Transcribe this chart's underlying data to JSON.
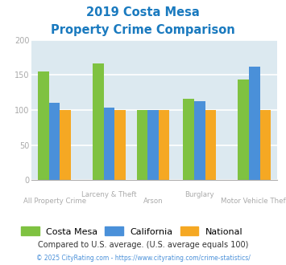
{
  "title_line1": "2019 Costa Mesa",
  "title_line2": "Property Crime Comparison",
  "title_color": "#1a7abf",
  "series": {
    "Costa Mesa": [
      155,
      166,
      100,
      116,
      143
    ],
    "California": [
      110,
      103,
      100,
      113,
      162
    ],
    "National": [
      100,
      100,
      100,
      100,
      100
    ]
  },
  "colors": {
    "Costa Mesa": "#7fc241",
    "California": "#4a90d9",
    "National": "#f5a823"
  },
  "ylim": [
    0,
    200
  ],
  "yticks": [
    0,
    50,
    100,
    150,
    200
  ],
  "bar_width": 0.2,
  "plot_bg_color": "#dce9f0",
  "fig_bg_color": "#ffffff",
  "legend_labels": [
    "Costa Mesa",
    "California",
    "National"
  ],
  "footnote1": "Compared to U.S. average. (U.S. average equals 100)",
  "footnote2": "© 2025 CityRating.com - https://www.cityrating.com/crime-statistics/",
  "footnote1_color": "#333333",
  "footnote2_color": "#4a90d9",
  "grid_color": "#ffffff",
  "tick_color": "#aaaaaa"
}
